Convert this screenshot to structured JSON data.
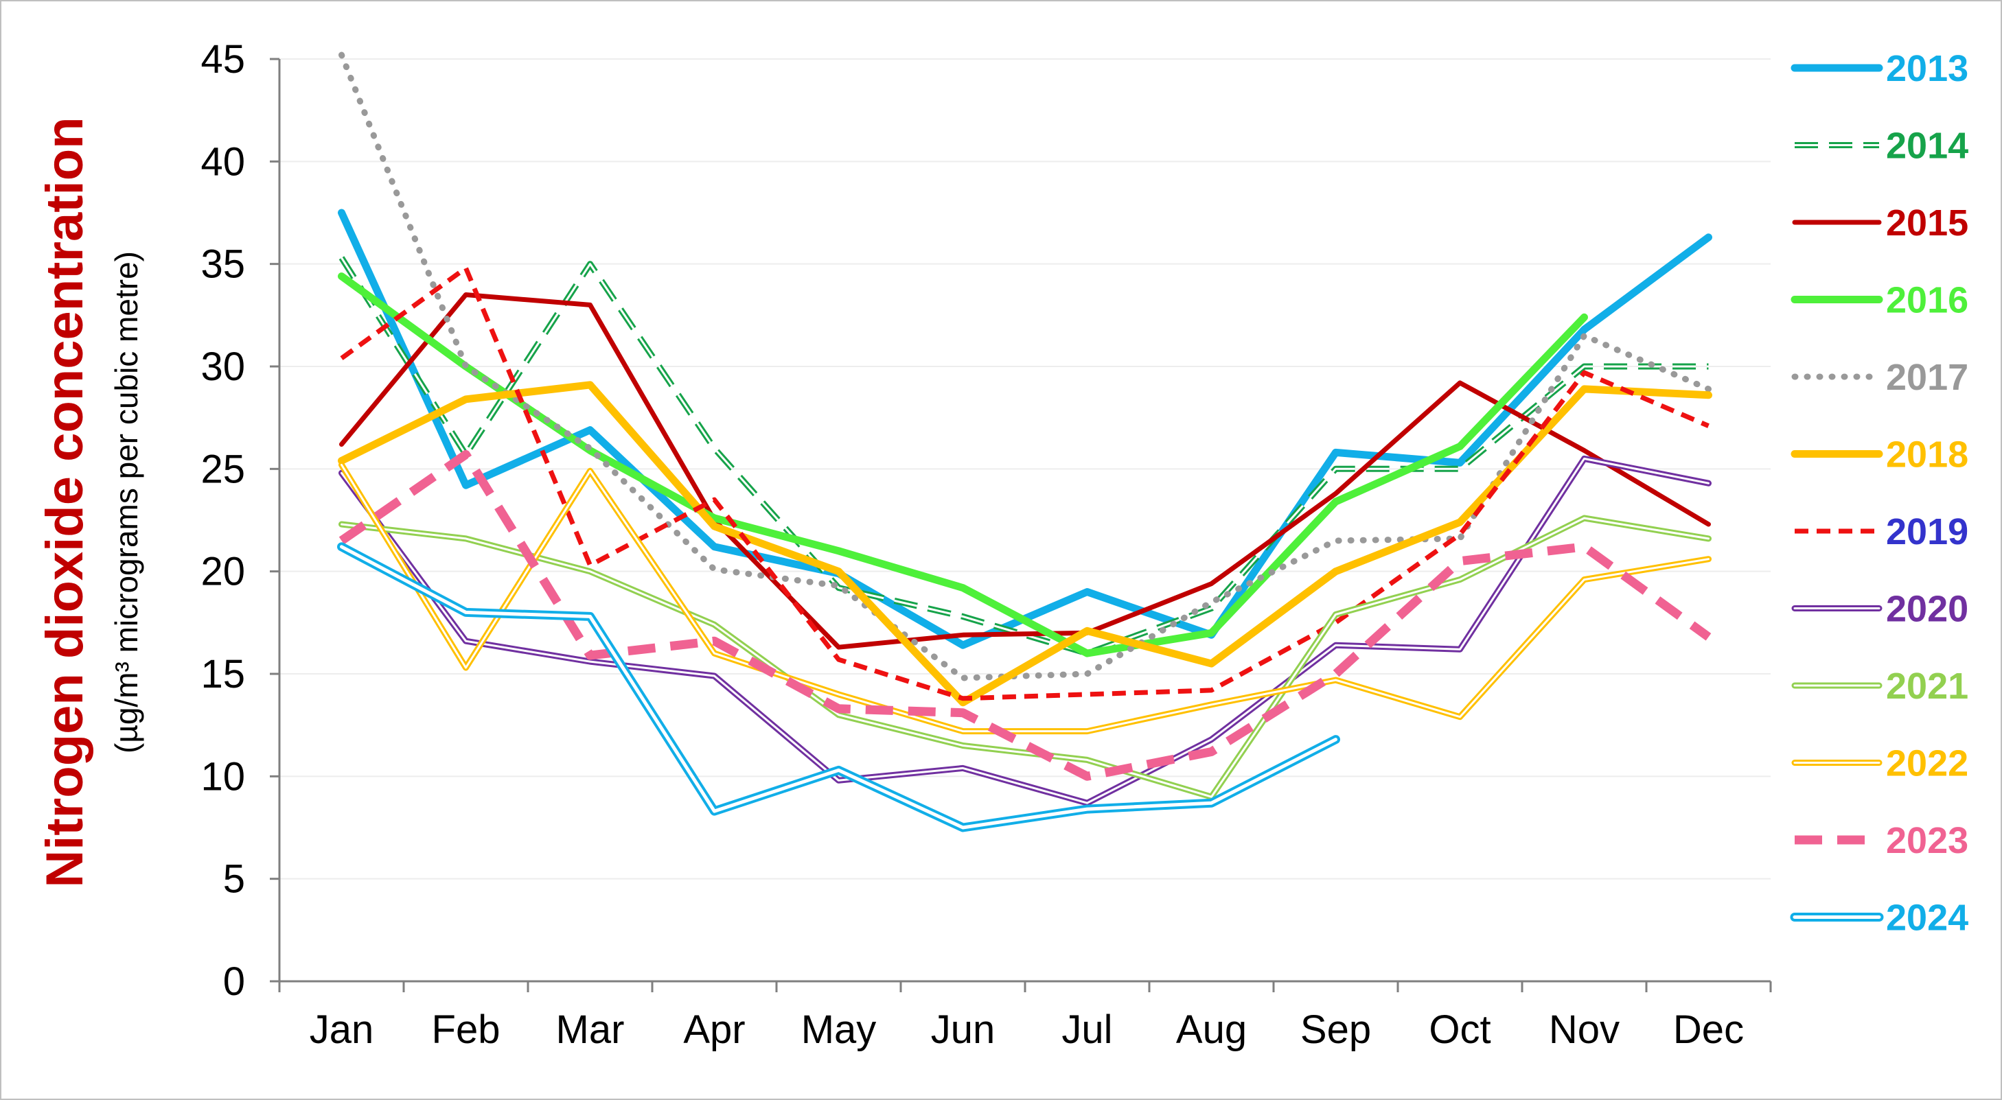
{
  "chart_data": {
    "type": "line",
    "title": "",
    "ylabel": "Nitrogen dioxide concentration",
    "ylabel_sub": "(µg/m³ micrograms per cubic metre)",
    "xlabel": "",
    "categories": [
      "Jan",
      "Feb",
      "Mar",
      "Apr",
      "May",
      "Jun",
      "Jul",
      "Aug",
      "Sep",
      "Oct",
      "Nov",
      "Dec"
    ],
    "ylim": [
      0,
      45
    ],
    "yticks": [
      "0",
      "5",
      "10",
      "15",
      "20",
      "25",
      "30",
      "35",
      "40",
      "45"
    ],
    "grid": "horizontal",
    "legend_position": "right",
    "series": [
      {
        "name": "2013",
        "color": "#11aee8",
        "style": "solid-thick",
        "values": [
          37.5,
          24.2,
          26.9,
          21.2,
          19.9,
          16.4,
          19.0,
          16.9,
          25.8,
          25.3,
          31.8,
          36.3
        ]
      },
      {
        "name": "2014",
        "color": "#16a34a",
        "style": "hollow-dashed",
        "values": [
          35.3,
          25.7,
          35.0,
          26.0,
          19.2,
          17.8,
          16.0,
          18.2,
          25.0,
          25.0,
          30.0,
          30.0
        ]
      },
      {
        "name": "2015",
        "color": "#c00000",
        "style": "solid",
        "values": [
          26.2,
          33.5,
          33.0,
          22.5,
          16.3,
          16.9,
          17.0,
          19.4,
          23.8,
          29.2,
          25.9,
          22.3
        ]
      },
      {
        "name": "2016",
        "color": "#4ef03a",
        "style": "solid-thick",
        "values": [
          34.4,
          30.0,
          25.9,
          22.6,
          21.0,
          19.2,
          16.0,
          17.0,
          23.4,
          26.1,
          32.4,
          null
        ]
      },
      {
        "name": "2017",
        "color": "#999999",
        "style": "dotted",
        "values": [
          45.2,
          30.0,
          26.0,
          20.1,
          19.3,
          14.8,
          15.0,
          18.5,
          21.5,
          21.6,
          31.5,
          28.9
        ]
      },
      {
        "name": "2018",
        "color": "#ffc000",
        "style": "solid-thick",
        "values": [
          25.4,
          28.4,
          29.1,
          22.2,
          20.0,
          13.6,
          17.1,
          15.5,
          20.0,
          22.4,
          28.9,
          28.6
        ]
      },
      {
        "name": "2019",
        "color": "#ee1111",
        "style": "dashed",
        "values": [
          30.4,
          34.8,
          20.3,
          23.5,
          15.7,
          13.8,
          14.0,
          14.2,
          17.5,
          21.8,
          29.7,
          27.1
        ],
        "label_color": "#3333cc"
      },
      {
        "name": "2020",
        "color": "#7030a0",
        "style": "hollow",
        "values": [
          24.8,
          16.6,
          15.6,
          14.9,
          9.8,
          10.4,
          8.7,
          11.8,
          16.4,
          16.2,
          25.5,
          24.3
        ]
      },
      {
        "name": "2021",
        "color": "#92d050",
        "style": "hollow",
        "values": [
          22.3,
          21.6,
          20.0,
          17.4,
          13.0,
          11.5,
          10.8,
          9.0,
          17.9,
          19.6,
          22.6,
          21.6
        ]
      },
      {
        "name": "2022",
        "color": "#ffc000",
        "style": "hollow",
        "values": [
          25.2,
          15.3,
          24.9,
          16.0,
          14.0,
          12.2,
          12.2,
          13.5,
          14.7,
          12.9,
          19.6,
          20.6
        ]
      },
      {
        "name": "2023",
        "color": "#f06292",
        "style": "dashed-thick",
        "values": [
          21.5,
          25.7,
          15.9,
          16.6,
          13.3,
          13.1,
          10.0,
          11.2,
          15.0,
          20.5,
          21.2,
          16.8
        ]
      },
      {
        "name": "2024",
        "color": "#11aee8",
        "style": "hollow-thick",
        "values": [
          21.2,
          18.0,
          17.8,
          8.3,
          10.3,
          7.5,
          8.4,
          8.7,
          11.8,
          null,
          null,
          null
        ]
      }
    ]
  }
}
